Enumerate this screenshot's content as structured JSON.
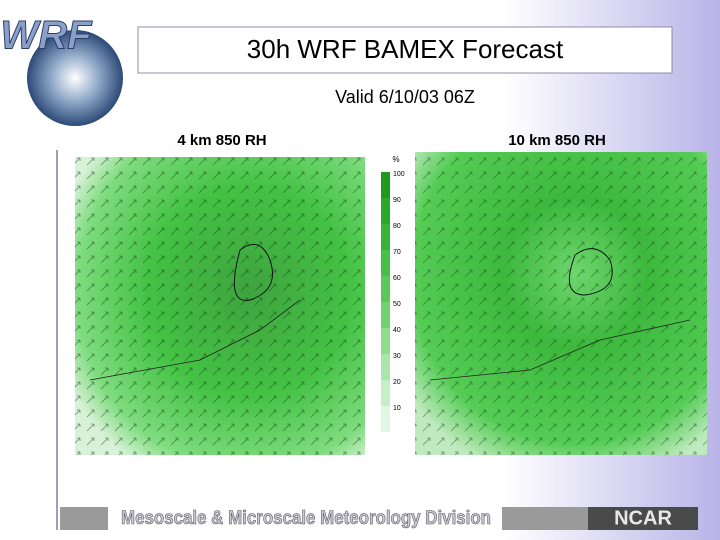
{
  "logo": "WRF",
  "header": {
    "title": "30h WRF  BAMEX Forecast",
    "subtitle": "Valid 6/10/03 06Z"
  },
  "panels": [
    {
      "label": "4 km 850 RH"
    },
    {
      "label": "10 km 850 RH"
    }
  ],
  "colorbar": {
    "unit": "%",
    "labels": [
      "100",
      "90",
      "80",
      "70",
      "60",
      "50",
      "40",
      "30",
      "20",
      "10"
    ]
  },
  "footer": {
    "division": "Mesoscale & Microscale Meteorology Division",
    "org": "NCAR"
  }
}
